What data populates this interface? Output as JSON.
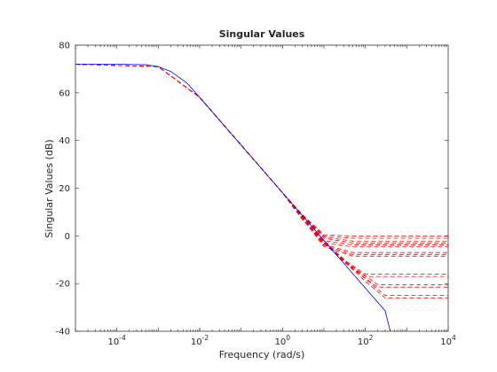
{
  "chart_data": {
    "type": "line",
    "title": "Singular Values",
    "xlabel": "Frequency (rad/s)",
    "ylabel": "Singular Values (dB)",
    "xscale": "log",
    "xlim": [
      1e-05,
      10000
    ],
    "ylim": [
      -40,
      80
    ],
    "xticks": [
      {
        "value": 0.0001,
        "base": "10",
        "exp": "-4"
      },
      {
        "value": 0.01,
        "base": "10",
        "exp": "-2"
      },
      {
        "value": 1,
        "base": "10",
        "exp": "0"
      },
      {
        "value": 100,
        "base": "10",
        "exp": "2"
      },
      {
        "value": 10000,
        "base": "10",
        "exp": "4"
      }
    ],
    "yticks": [
      "-40",
      "-20",
      "0",
      "20",
      "40",
      "60",
      "80"
    ],
    "grid": false,
    "legend": "none",
    "colors": {
      "nominal": "#0000ff",
      "perturbed": "#ff0000",
      "axes": "#262626"
    },
    "series": [
      {
        "style": "solid",
        "color": "#0000ff",
        "x": [
          1e-05,
          0.0001,
          0.0005,
          0.001,
          0.002,
          0.005,
          0.01,
          0.05,
          0.1,
          0.5,
          1,
          2,
          5,
          10,
          50,
          100,
          300,
          400
        ],
        "y": [
          72,
          72,
          71.8,
          71,
          69,
          64,
          58.1,
          44.1,
          38.1,
          24.1,
          18.1,
          12.1,
          4.1,
          -1.9,
          -15.9,
          -21.9,
          -31.4,
          -40
        ]
      },
      {
        "style": "dashed",
        "color": "#ff0000",
        "x": [
          1e-05,
          0.001,
          0.01,
          0.1,
          1,
          3,
          10,
          50,
          10000
        ],
        "y": [
          72,
          71,
          58.1,
          38.1,
          18.1,
          9,
          0.5,
          -0.1,
          -0.1
        ]
      },
      {
        "style": "dashed",
        "color": "#ff0000",
        "x": [
          1e-05,
          0.001,
          0.01,
          0.1,
          1,
          3,
          10,
          50,
          10000
        ],
        "y": [
          72,
          71,
          58.1,
          38.1,
          18.1,
          8.8,
          0,
          -1,
          -1
        ]
      },
      {
        "style": "dashed",
        "color": "#ff0000",
        "x": [
          1e-05,
          0.001,
          0.01,
          0.1,
          1,
          3,
          10,
          50,
          10000
        ],
        "y": [
          72,
          71,
          58.1,
          38.1,
          18.1,
          8.6,
          -0.5,
          -2.2,
          -2.2
        ]
      },
      {
        "style": "dashed",
        "color": "#ff0000",
        "x": [
          1e-05,
          0.001,
          0.01,
          0.1,
          1,
          3,
          10,
          50,
          10000
        ],
        "y": [
          72,
          71,
          58.1,
          38.1,
          18.1,
          8.4,
          -1,
          -3,
          -3
        ]
      },
      {
        "style": "dashed",
        "color": "#ff0000",
        "x": [
          1e-05,
          0.001,
          0.01,
          0.1,
          1,
          3,
          10,
          50,
          10000
        ],
        "y": [
          72,
          71,
          58.1,
          38.1,
          18.1,
          8.2,
          -2,
          -3.8,
          -3.8
        ]
      },
      {
        "style": "dashed",
        "color": "#ff0000",
        "x": [
          1e-05,
          0.001,
          0.01,
          0.1,
          1,
          3,
          10,
          50,
          10000
        ],
        "y": [
          72,
          71,
          58.1,
          38.1,
          18.1,
          8,
          -3,
          -4.6,
          -4.6
        ]
      },
      {
        "style": "dashed",
        "color": "#ff0000",
        "x": [
          1e-05,
          0.001,
          0.01,
          0.1,
          1,
          3,
          10,
          50,
          10000
        ],
        "y": [
          72,
          71,
          58.1,
          38.1,
          18.1,
          7.8,
          -3.5,
          -7,
          -7
        ]
      },
      {
        "style": "dashed",
        "color": "#ff0000",
        "x": [
          1e-05,
          0.001,
          0.01,
          0.1,
          1,
          3,
          10,
          50,
          10000
        ],
        "y": [
          72,
          71,
          58.1,
          38.1,
          18.1,
          7.6,
          -4,
          -7.8,
          -7.8
        ]
      },
      {
        "style": "dashed",
        "color": "#ff0000",
        "x": [
          1e-05,
          0.001,
          0.01,
          0.1,
          1,
          3,
          10,
          50,
          10000
        ],
        "y": [
          72,
          71,
          58.1,
          38.1,
          18.1,
          7.4,
          -4.5,
          -8.5,
          -8.5
        ]
      },
      {
        "style": "dashed",
        "color": "#ff0000",
        "x": [
          1e-05,
          0.001,
          0.01,
          0.1,
          1,
          3,
          10,
          30,
          100,
          10000
        ],
        "y": [
          72,
          71,
          58.1,
          38.1,
          18.1,
          7,
          -2,
          -10,
          -16,
          -16
        ]
      },
      {
        "style": "dashed",
        "color": "#ff0000",
        "x": [
          1e-05,
          0.001,
          0.01,
          0.1,
          1,
          3,
          10,
          30,
          100,
          10000
        ],
        "y": [
          72,
          71,
          58.1,
          38.1,
          18.1,
          7,
          -2.2,
          -11,
          -17,
          -17
        ]
      },
      {
        "style": "dashed",
        "color": "#ff0000",
        "x": [
          1e-05,
          0.001,
          0.01,
          0.1,
          1,
          3,
          10,
          50,
          200,
          10000
        ],
        "y": [
          72,
          71,
          58.1,
          38.1,
          18.1,
          7,
          -2.5,
          -13,
          -20.5,
          -20.5
        ]
      },
      {
        "style": "dashed",
        "color": "#ff0000",
        "x": [
          1e-05,
          0.001,
          0.01,
          0.1,
          1,
          3,
          10,
          50,
          200,
          10000
        ],
        "y": [
          72,
          71,
          58.1,
          38.1,
          18.1,
          7,
          -2.7,
          -14,
          -21.5,
          -21.5
        ]
      },
      {
        "style": "dashed",
        "color": "#ff0000",
        "x": [
          1e-05,
          0.001,
          0.01,
          0.1,
          1,
          3,
          10,
          100,
          300,
          10000
        ],
        "y": [
          72,
          71,
          58.1,
          38.1,
          18.1,
          7,
          -2.9,
          -18,
          -25,
          -25
        ]
      },
      {
        "style": "dashed",
        "color": "#ff0000",
        "x": [
          1e-05,
          0.001,
          0.01,
          0.1,
          1,
          3,
          10,
          100,
          300,
          10000
        ],
        "y": [
          72,
          71,
          58.1,
          38.1,
          18.1,
          7,
          -3,
          -19,
          -26,
          -26
        ]
      }
    ]
  }
}
